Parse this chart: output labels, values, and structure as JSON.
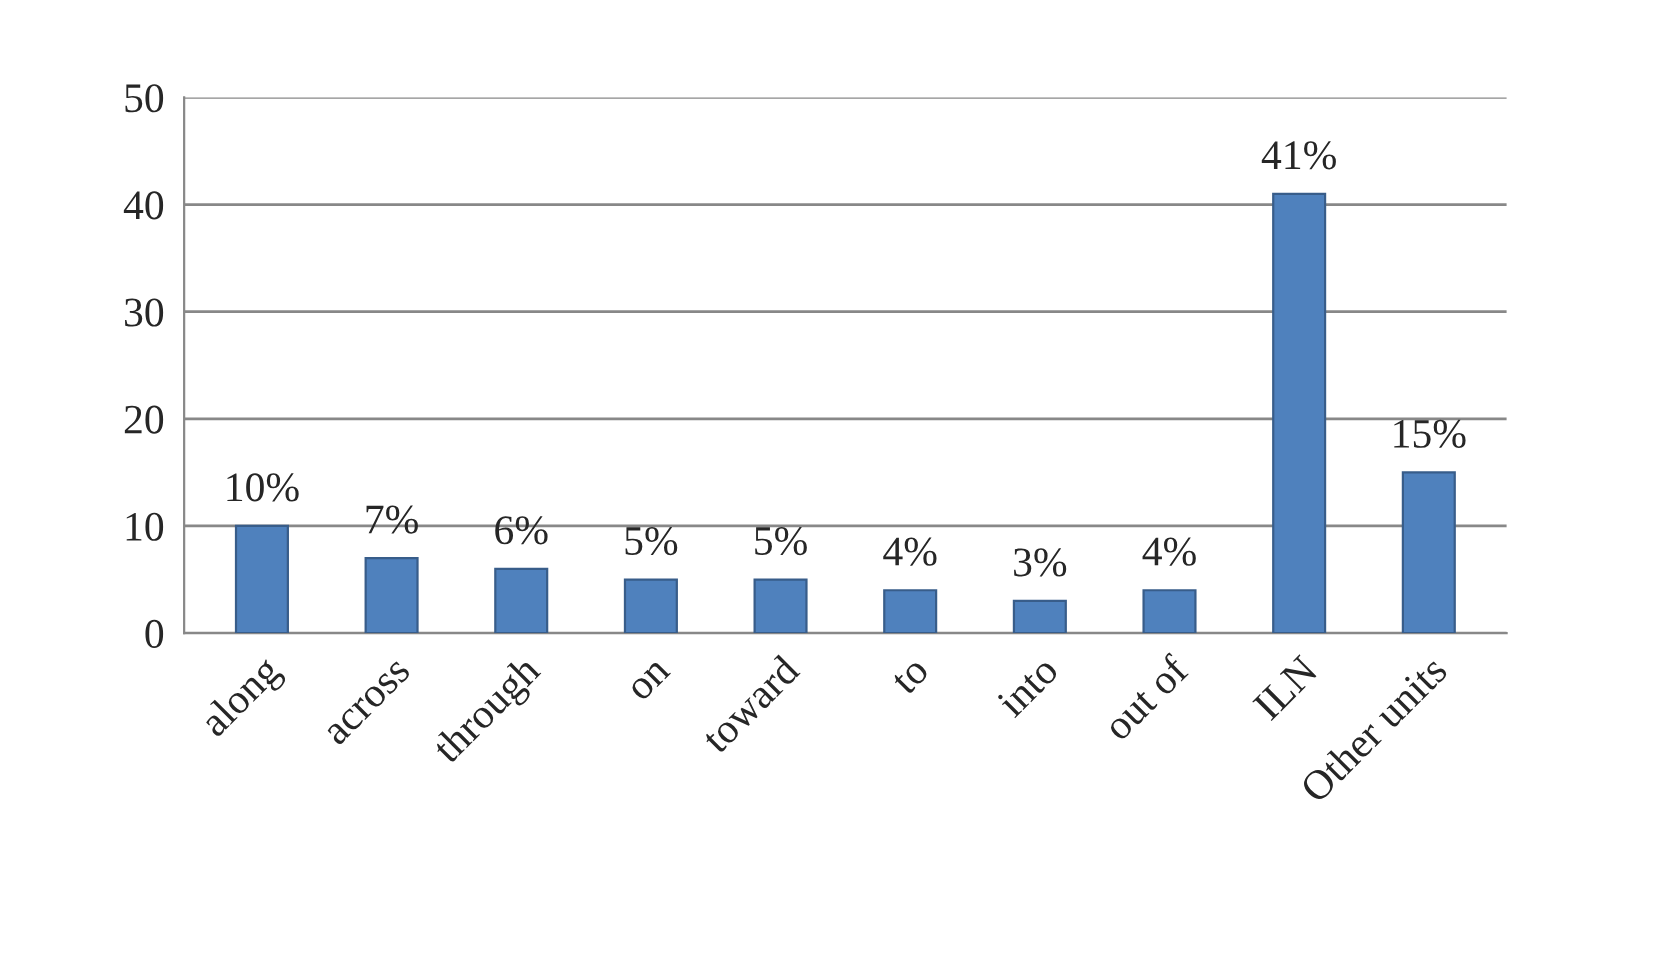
{
  "chart_data": {
    "type": "bar",
    "categories": [
      "along",
      "across",
      "through",
      "on",
      "toward",
      "to",
      "into",
      "out of",
      "ILN",
      "Other units"
    ],
    "values": [
      10,
      7,
      6,
      5,
      5,
      4,
      3,
      4,
      41,
      15
    ],
    "value_labels": [
      "10%",
      "7%",
      "6%",
      "5%",
      "5%",
      "4%",
      "3%",
      "4%",
      "41%",
      "15%"
    ],
    "color": "#4f81bd",
    "ylim": [
      0,
      50
    ],
    "yticks": [
      0,
      10,
      20,
      30,
      40,
      50
    ],
    "grid": "y"
  }
}
